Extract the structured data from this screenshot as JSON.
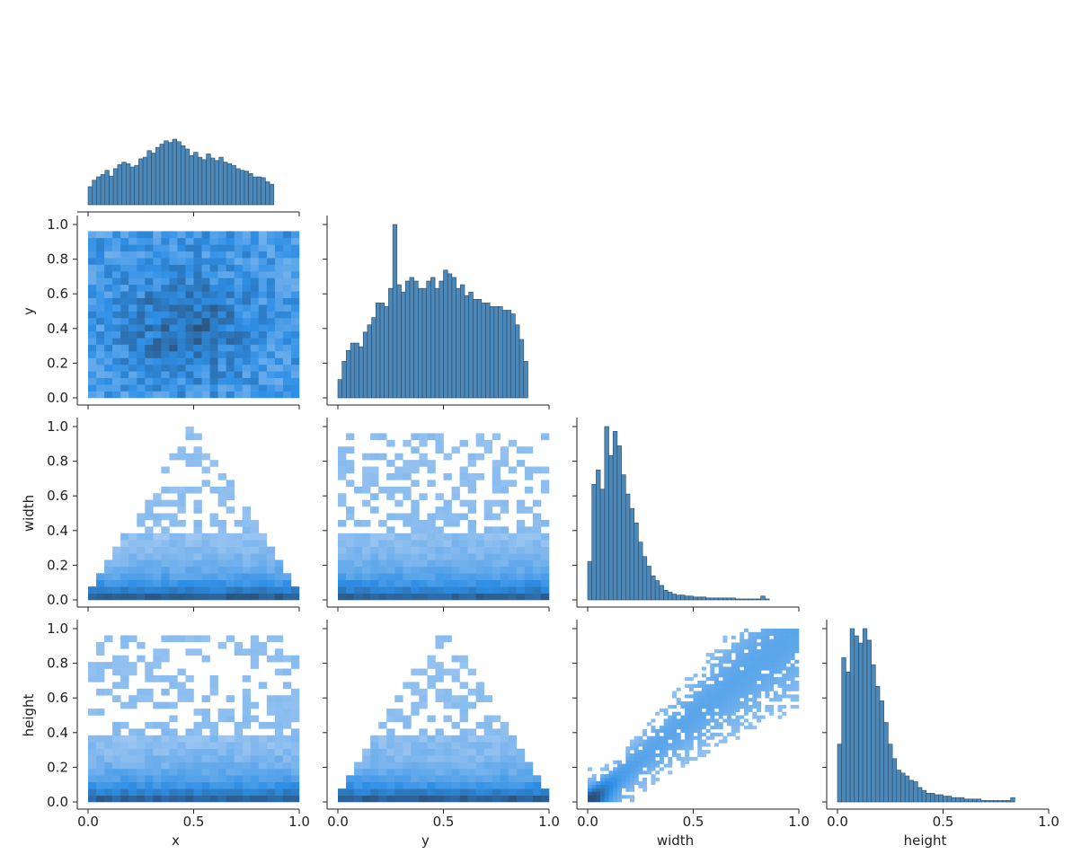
{
  "figure": {
    "type": "pairplot-corner"
  },
  "chart_data": {
    "type": "heatmap",
    "variables": [
      "x",
      "y",
      "width",
      "height"
    ],
    "axis_labels": {
      "x": "x",
      "y": "y",
      "width": "width",
      "height": "height"
    },
    "axis_range": [
      0,
      1
    ],
    "ticks": [
      0.0,
      0.2,
      0.4,
      0.6,
      0.8,
      1.0
    ],
    "tick_labels": [
      "0.0",
      "0.2",
      "0.4",
      "0.6",
      "0.8",
      "1.0"
    ],
    "x_tick_values": [
      0.0,
      0.5,
      1.0
    ],
    "x_tick_labels": [
      "0.0",
      "0.5",
      "1.0"
    ],
    "grid": false,
    "legend": "none",
    "colors": {
      "hist_fill": "#4c88b8",
      "hist_edge": "#2b4a66",
      "heat_low": "#a9ccf2",
      "heat_mid": "#2e8fe6",
      "heat_high": "#2b4f75"
    },
    "histograms": {
      "x": {
        "bin_start": 0.0,
        "bin_width": 0.02,
        "counts": [
          22,
          30,
          34,
          37,
          42,
          35,
          44,
          49,
          52,
          50,
          46,
          48,
          56,
          58,
          66,
          63,
          70,
          74,
          78,
          76,
          80,
          77,
          72,
          68,
          60,
          64,
          58,
          55,
          62,
          57,
          54,
          58,
          52,
          50,
          48,
          44,
          42,
          41,
          38,
          34,
          34,
          33,
          28,
          25
        ]
      },
      "y": {
        "bin_start": 0.0,
        "bin_width": 0.02,
        "counts": [
          10,
          20,
          26,
          30,
          30,
          28,
          36,
          40,
          44,
          52,
          52,
          50,
          60,
          95,
          62,
          58,
          64,
          66,
          64,
          60,
          60,
          64,
          66,
          60,
          64,
          70,
          68,
          66,
          60,
          62,
          56,
          58,
          54,
          54,
          52,
          52,
          50,
          50,
          50,
          48,
          48,
          46,
          40,
          32,
          20
        ]
      },
      "width": {
        "bin_start": 0.0,
        "bin_width": 0.02,
        "counts": [
          40,
          120,
          135,
          115,
          180,
          150,
          175,
          160,
          130,
          110,
          95,
          80,
          60,
          45,
          35,
          25,
          20,
          15,
          10,
          8,
          6,
          5,
          5,
          4,
          4,
          3,
          3,
          3,
          2,
          2,
          2,
          2,
          2,
          2,
          2,
          1,
          1,
          1,
          1,
          1,
          1,
          4,
          1
        ]
      },
      "height": {
        "bin_start": 0.0,
        "bin_width": 0.02,
        "counts": [
          40,
          100,
          90,
          120,
          115,
          110,
          120,
          112,
          95,
          80,
          70,
          55,
          40,
          30,
          22,
          20,
          18,
          15,
          14,
          10,
          8,
          6,
          6,
          5,
          5,
          4,
          4,
          3,
          3,
          3,
          2,
          2,
          2,
          2,
          1,
          1,
          1,
          1,
          1,
          1,
          1,
          3
        ]
      }
    },
    "panels": [
      {
        "row": "y",
        "col": "x",
        "bins": 26,
        "pattern": "uniform"
      },
      {
        "row": "width",
        "col": "x",
        "bins": 26,
        "pattern": "triangle-x"
      },
      {
        "row": "width",
        "col": "y",
        "bins": 26,
        "pattern": "skew-small"
      },
      {
        "row": "height",
        "col": "x",
        "bins": 26,
        "pattern": "skew-small"
      },
      {
        "row": "height",
        "col": "y",
        "bins": 26,
        "pattern": "triangle-x"
      },
      {
        "row": "height",
        "col": "width",
        "bins": 50,
        "pattern": "correlated"
      }
    ]
  }
}
